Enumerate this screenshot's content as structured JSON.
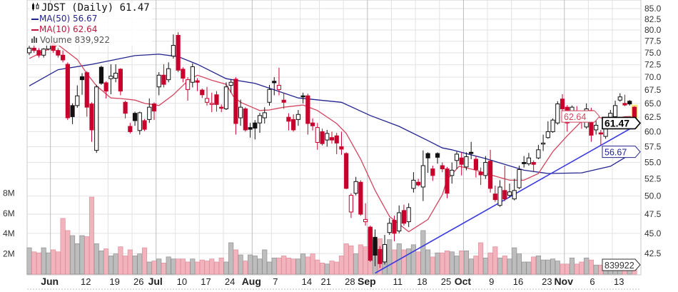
{
  "legend": {
    "title": "JDST (Daily) 61.47",
    "ma50": "MA(50) 56.67",
    "ma10": "MA(10) 62.64",
    "volume": "Volume 839,922"
  },
  "tags": {
    "ma10": "62.64",
    "last": "61.47",
    "ma50": "56.67",
    "volume": "839922"
  },
  "colors": {
    "up": "#111111",
    "down": "#c8002d",
    "ma50": "#23238e",
    "ma10": "#d2465f",
    "trend": "#3a3ae0",
    "vol_up": "#bdbdbd",
    "vol_down": "#f2b3bd",
    "grid": "#e2e2e2"
  },
  "chart_data": {
    "type": "candlestick",
    "symbol": "JDST",
    "period": "Daily",
    "y_scale": "log",
    "ylim": [
      42.5,
      85.0
    ],
    "y_ticks": [
      "85.0",
      "82.5",
      "80.0",
      "77.5",
      "75.0",
      "72.5",
      "70.0",
      "67.5",
      "65.0",
      "62.5",
      "60.0",
      "57.5",
      "55.0",
      "52.5",
      "50.0",
      "47.5",
      "45.0",
      "42.5"
    ],
    "volume_ticks": [
      {
        "label": "8M",
        "value": 8
      },
      {
        "label": "6M",
        "value": 6
      },
      {
        "label": "4M",
        "value": 4
      },
      {
        "label": "2M",
        "value": 2
      }
    ],
    "x_ticks": [
      {
        "label": "Jun",
        "i": 5,
        "month": true
      },
      {
        "label": "12",
        "i": 11
      },
      {
        "label": "19",
        "i": 17
      },
      {
        "label": "26",
        "i": 22
      },
      {
        "label": "Jul",
        "i": 27,
        "month": true
      },
      {
        "label": "10",
        "i": 31
      },
      {
        "label": "17",
        "i": 36
      },
      {
        "label": "24",
        "i": 41
      },
      {
        "label": "Aug",
        "i": 47,
        "month": true
      },
      {
        "label": "7",
        "i": 51
      },
      {
        "label": "14",
        "i": 57
      },
      {
        "label": "21",
        "i": 61
      },
      {
        "label": "28",
        "i": 66
      },
      {
        "label": "Sep",
        "i": 71,
        "month": true
      },
      {
        "label": "11",
        "i": 76
      },
      {
        "label": "18",
        "i": 81
      },
      {
        "label": "25",
        "i": 86
      },
      {
        "label": "Oct",
        "i": 91,
        "month": true
      },
      {
        "label": "9",
        "i": 96
      },
      {
        "label": "16",
        "i": 101
      },
      {
        "label": "23",
        "i": 107
      },
      {
        "label": "Nov",
        "i": 112,
        "month": true
      },
      {
        "label": "6",
        "i": 117
      },
      {
        "label": "13",
        "i": 122
      }
    ],
    "ohlc": [
      [
        75,
        76.5,
        74.5,
        76
      ],
      [
        76,
        77,
        75,
        75.5
      ],
      [
        75.5,
        76,
        74,
        74.5
      ],
      [
        74.5,
        76,
        74,
        75.8
      ],
      [
        75.8,
        77.5,
        75.5,
        77
      ],
      [
        77,
        77.5,
        75,
        75.5
      ],
      [
        75.5,
        76,
        74,
        74.5
      ],
      [
        74.5,
        75.5,
        73,
        73.5
      ],
      [
        72.6,
        73,
        62,
        62.4
      ],
      [
        64.6,
        65,
        61.3,
        62.6
      ],
      [
        64.6,
        68.4,
        64.2,
        66.4
      ],
      [
        70.1,
        70.8,
        66.6,
        69.5
      ],
      [
        70.9,
        71.2,
        62.6,
        64.3
      ],
      [
        64.9,
        65.2,
        58.3,
        60.3
      ],
      [
        56.9,
        68.5,
        56.5,
        68.1
      ],
      [
        72,
        72.3,
        68.5,
        68.8
      ],
      [
        68.9,
        69.2,
        65.9,
        67.3
      ],
      [
        69.7,
        72.6,
        66.7,
        70.2
      ],
      [
        69.8,
        72.6,
        69,
        70.8
      ],
      [
        71.6,
        71.8,
        66.5,
        67.3
      ],
      [
        65.2,
        65.5,
        62.3,
        63.2
      ],
      [
        60.9,
        61.5,
        59.7,
        60
      ],
      [
        63.2,
        63.5,
        61,
        61.9
      ],
      [
        60.2,
        63.5,
        59.5,
        63.3
      ],
      [
        61.9,
        62.2,
        60.1,
        60.4
      ],
      [
        62.1,
        65.9,
        61.5,
        64.3
      ],
      [
        64.9,
        65.2,
        62,
        63.6
      ],
      [
        68.1,
        71,
        66.5,
        70.4
      ],
      [
        70.4,
        72.6,
        68,
        68.6
      ],
      [
        69.5,
        73,
        69,
        71.7
      ],
      [
        74.3,
        79,
        73.8,
        76.6
      ],
      [
        78.8,
        79.5,
        71,
        71.4
      ],
      [
        71.6,
        72,
        69,
        69.8
      ],
      [
        67.6,
        70,
        65.5,
        69.5
      ],
      [
        69,
        72.8,
        68,
        72.1
      ],
      [
        69.3,
        69.8,
        67.3,
        69
      ],
      [
        67.5,
        67.8,
        66,
        66.6
      ],
      [
        65.2,
        68.1,
        64.6,
        65.9
      ],
      [
        64.9,
        67,
        63.4,
        65.0
      ],
      [
        66.6,
        67.3,
        63.5,
        64.8
      ],
      [
        64.3,
        64.8,
        63.4,
        64.1
      ],
      [
        64,
        69,
        63.8,
        68.1
      ],
      [
        68.4,
        69.5,
        67,
        69
      ],
      [
        69.6,
        70,
        59.5,
        61.4
      ],
      [
        62.4,
        65.7,
        61,
        64.3
      ],
      [
        64,
        64.3,
        60,
        60.3
      ],
      [
        60.7,
        61.5,
        59,
        60.4
      ],
      [
        61.5,
        62,
        58.7,
        60.6
      ],
      [
        61.5,
        63.3,
        59.8,
        62.8
      ],
      [
        62.4,
        64.3,
        61.4,
        63.3
      ],
      [
        65.2,
        68.5,
        64.6,
        67.6
      ],
      [
        69.2,
        70,
        66.5,
        68.9
      ],
      [
        67.6,
        71.9,
        66.5,
        68.4
      ],
      [
        65.6,
        67,
        64,
        65.2
      ],
      [
        62.5,
        63.2,
        60.2,
        61.8
      ],
      [
        62.1,
        63,
        60,
        60.3
      ],
      [
        62.1,
        63.8,
        61,
        63
      ],
      [
        66.4,
        67,
        65,
        66.2
      ],
      [
        66.4,
        66.8,
        59.5,
        61.4
      ],
      [
        61.5,
        62.3,
        60.2,
        61
      ],
      [
        58.2,
        61.5,
        57,
        60.7
      ],
      [
        60,
        60.5,
        57.7,
        58
      ],
      [
        58.6,
        60.3,
        57.5,
        59.7
      ],
      [
        59,
        60,
        58,
        58.6
      ],
      [
        59.3,
        59.8,
        56.3,
        58.1
      ],
      [
        57.5,
        60,
        56.2,
        57.1
      ],
      [
        56.4,
        56.6,
        51,
        51.1
      ],
      [
        47.8,
        50.4,
        47,
        50.1
      ],
      [
        50.4,
        52.8,
        50.1,
        52.1
      ],
      [
        52,
        52.3,
        47.3,
        47.5
      ],
      [
        46.5,
        49,
        46,
        46.8
      ],
      [
        45.8,
        46,
        41.5,
        41.7
      ],
      [
        44.5,
        45.5,
        41,
        42.3
      ],
      [
        43,
        43.4,
        40.8,
        41.3
      ],
      [
        41.5,
        44.8,
        41.2,
        43.6
      ],
      [
        45.1,
        47,
        44.8,
        46.3
      ],
      [
        46.7,
        47.3,
        44,
        45
      ],
      [
        45.3,
        48.7,
        45,
        47.7
      ],
      [
        48,
        48.8,
        46,
        46.3
      ],
      [
        46.5,
        49,
        45.8,
        48.4
      ],
      [
        51.1,
        53.5,
        50.5,
        52.3
      ],
      [
        52,
        52.5,
        51.4,
        51.6
      ],
      [
        51.3,
        56.9,
        49.3,
        54.5
      ],
      [
        56.4,
        56.6,
        53.4,
        55.7
      ],
      [
        54,
        54.5,
        52.2,
        53
      ],
      [
        56.4,
        56.6,
        54.8,
        55.8
      ],
      [
        54.5,
        55,
        53.5,
        54
      ],
      [
        54,
        54.3,
        49.7,
        50.4
      ],
      [
        53,
        55,
        51.8,
        53.8
      ],
      [
        55.3,
        56.7,
        54,
        56.3
      ],
      [
        55.7,
        56.6,
        53,
        54.7
      ],
      [
        54.3,
        56.6,
        53.8,
        55.9
      ],
      [
        56.6,
        58.3,
        55.5,
        56.4
      ],
      [
        55.5,
        56,
        52.7,
        53.9
      ],
      [
        53.5,
        54.2,
        51.6,
        53.1
      ],
      [
        53,
        56,
        52.5,
        55
      ],
      [
        55.2,
        57,
        50.5,
        51.1
      ],
      [
        50.3,
        51.5,
        49.2,
        49.5
      ],
      [
        48.7,
        52.3,
        48.5,
        51.3
      ],
      [
        50.8,
        54.5,
        49.3,
        49.6
      ],
      [
        50.1,
        51.8,
        49.8,
        50.6
      ],
      [
        49.6,
        52.5,
        49.4,
        50.8
      ],
      [
        51.2,
        54.5,
        51,
        53.9
      ],
      [
        55,
        56,
        54.2,
        54.8
      ],
      [
        54.8,
        56.5,
        54.5,
        55.7
      ],
      [
        55,
        55.3,
        53.5,
        54.7
      ],
      [
        55.7,
        57.8,
        55.5,
        57
      ],
      [
        58,
        59.5,
        56.8,
        58.1
      ],
      [
        59,
        61.8,
        58.8,
        60
      ],
      [
        60,
        62.3,
        59.8,
        62
      ],
      [
        61.5,
        65.4,
        61.2,
        64.9
      ],
      [
        65.8,
        66.7,
        63.5,
        64
      ],
      [
        64.3,
        64.7,
        60,
        61.5
      ],
      [
        63,
        64.6,
        62.5,
        64.3
      ],
      [
        63.5,
        64.5,
        62.5,
        63.2
      ],
      [
        62.4,
        63,
        60.5,
        61.7
      ],
      [
        60.8,
        65,
        60.5,
        64
      ],
      [
        63.7,
        64.2,
        58.3,
        59.4
      ],
      [
        60.3,
        62,
        59.5,
        61.1
      ],
      [
        59.8,
        60.3,
        57.8,
        59.6
      ],
      [
        59.2,
        62,
        58.8,
        60.8
      ],
      [
        61.3,
        63.8,
        60.8,
        63.2
      ],
      [
        62.6,
        65.5,
        62.3,
        64.6
      ],
      [
        65.6,
        66.9,
        65.3,
        66.2
      ],
      [
        65,
        66.6,
        64.5,
        64.7
      ],
      [
        65.4,
        65.6,
        64.6,
        64.9
      ],
      [
        64.3,
        64.5,
        60.8,
        61.47
      ]
    ],
    "volume_millions": [
      2.6,
      2.2,
      2.1,
      2.6,
      2.1,
      2.4,
      2.2,
      5.5,
      4.3,
      3.8,
      3.0,
      3.8,
      3.7,
      7.6,
      3.0,
      2.3,
      2.5,
      1.8,
      2.0,
      2.7,
      1.8,
      2.4,
      1.8,
      2.0,
      2.6,
      1.2,
      1.3,
      1.5,
      1.1,
      1.7,
      1.5,
      1.5,
      1.5,
      1.2,
      1.5,
      1.2,
      1.4,
      1.3,
      1.5,
      1.2,
      1.6,
      1.2,
      3.1,
      2.4,
      1.9,
      1.3,
      1.9,
      1.8,
      1.5,
      2.4,
      1.2,
      1.6,
      1.6,
      1.8,
      1.6,
      1.5,
      1.5,
      2.0,
      1.7,
      2.0,
      1.4,
      1.1,
      1.0,
      1.3,
      1.2,
      1.8,
      3.0,
      2.8,
      2.0,
      2.9,
      2.7,
      4.4,
      3.3,
      3.5,
      2.7,
      3.4,
      2.4,
      3.0,
      2.4,
      2.5,
      2.9,
      2.2,
      4.3,
      2.4,
      1.7,
      2.1,
      2.1,
      2.3,
      2.2,
      1.8,
      2.3,
      2.3,
      1.5,
      1.8,
      3.1,
      1.6,
      2.1,
      2.7,
      1.6,
      1.8,
      1.5,
      2.6,
      2.0,
      1.2,
      1.2,
      1.7,
      1.8,
      1.4,
      1.4,
      1.5,
      1.3,
      1.0,
      1.0,
      1.6,
      1.0,
      1.2,
      1.6,
      1.4,
      0.9,
      0.9,
      1.0,
      0.6,
      0.8,
      0.7,
      0.5,
      0.8,
      0.84
    ],
    "ma50": [
      [
        0,
        68.3
      ],
      [
        6,
        71.5
      ],
      [
        13,
        72.6
      ],
      [
        22,
        74.4
      ],
      [
        27,
        74.7
      ],
      [
        31,
        74.2
      ],
      [
        35,
        72.6
      ],
      [
        41,
        69.7
      ],
      [
        47,
        68.8
      ],
      [
        56,
        66.0
      ],
      [
        65,
        65.2
      ],
      [
        71,
        62.8
      ],
      [
        77,
        60.9
      ],
      [
        83,
        58.5
      ],
      [
        86,
        57.3
      ],
      [
        88,
        57.0
      ],
      [
        95,
        55.6
      ],
      [
        103,
        53.8
      ],
      [
        108,
        53.3
      ],
      [
        115,
        53.4
      ],
      [
        121,
        54.4
      ],
      [
        126,
        56.67
      ]
    ],
    "ma10": [
      [
        0,
        73.8
      ],
      [
        3,
        75.3
      ],
      [
        6,
        76.7
      ],
      [
        10,
        73.6
      ],
      [
        12,
        70.7
      ],
      [
        14,
        68.3
      ],
      [
        17,
        66.0
      ],
      [
        19,
        65.9
      ],
      [
        22,
        65.6
      ],
      [
        24,
        65.0
      ],
      [
        27,
        64.6
      ],
      [
        30,
        66.6
      ],
      [
        33,
        69.3
      ],
      [
        35,
        70.4
      ],
      [
        38,
        69.4
      ],
      [
        41,
        68.6
      ],
      [
        42.5,
        66.3
      ],
      [
        44,
        65.2
      ],
      [
        48,
        63.7
      ],
      [
        50,
        63.8
      ],
      [
        53,
        64.3
      ],
      [
        57,
        64.7
      ],
      [
        60,
        63.7
      ],
      [
        64,
        61.4
      ],
      [
        66,
        59.7
      ],
      [
        69,
        55.5
      ],
      [
        72,
        50.8
      ],
      [
        75,
        47.2
      ],
      [
        79,
        45.2
      ],
      [
        83,
        46.8
      ],
      [
        86,
        50.2
      ],
      [
        87,
        52.4
      ],
      [
        89.5,
        54.4
      ],
      [
        93,
        53.8
      ],
      [
        97,
        52.9
      ],
      [
        100,
        52.3
      ],
      [
        103,
        52.3
      ],
      [
        106,
        53.3
      ],
      [
        109,
        56.7
      ],
      [
        112,
        59.3
      ],
      [
        115,
        61.8
      ],
      [
        118,
        62.6
      ],
      [
        121,
        62.0
      ],
      [
        124,
        62.6
      ],
      [
        126,
        62.64
      ]
    ],
    "trendline": [
      [
        72,
        40.2
      ],
      [
        126.6,
        61.2
      ]
    ],
    "last_close": 61.47
  }
}
